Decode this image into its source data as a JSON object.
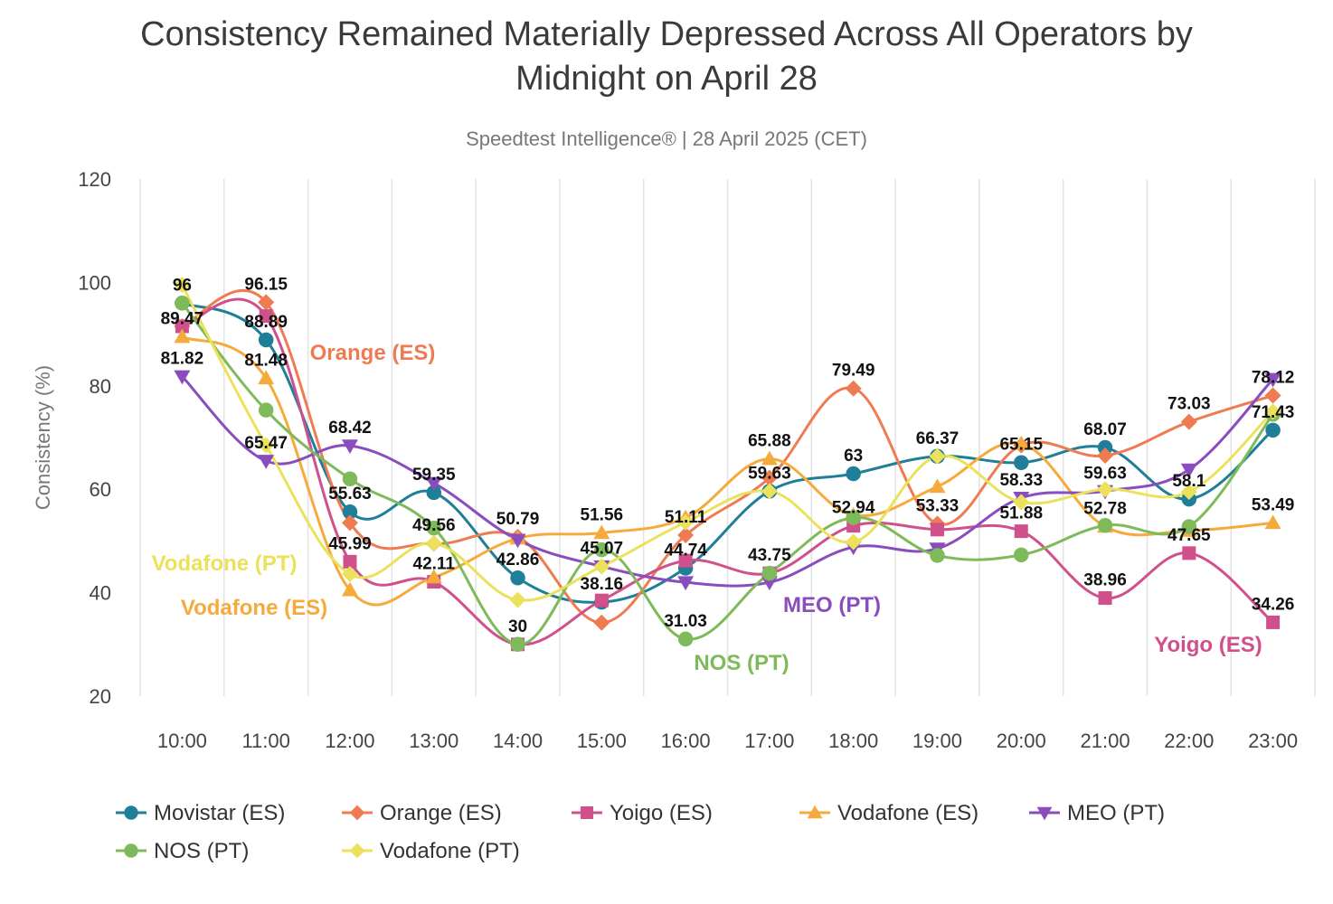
{
  "chart_data": {
    "type": "line",
    "title_line1": "Consistency Remained Materially Depressed Across All Operators by",
    "title_line2": "Midnight on April 28",
    "subtitle": "Speedtest Intelligence® | 28 April 2025 (CET)",
    "xlabel": "",
    "ylabel": "Consistency (%)",
    "ylim": [
      20,
      120
    ],
    "yticks": [
      "20",
      "40",
      "60",
      "80",
      "100",
      "120"
    ],
    "grid": "vertical",
    "legend_position": "bottom",
    "categories": [
      "10:00",
      "11:00",
      "12:00",
      "13:00",
      "14:00",
      "15:00",
      "16:00",
      "17:00",
      "18:00",
      "19:00",
      "20:00",
      "21:00",
      "22:00",
      "23:00"
    ],
    "series": [
      {
        "name": "Movistar (ES)",
        "color": "#1f7f98",
        "marker": "circle",
        "values": [
          96,
          88.89,
          55.63,
          59.35,
          42.86,
          38.16,
          44.74,
          59.63,
          63,
          66.37,
          65.15,
          68.07,
          58.1,
          71.43
        ]
      },
      {
        "name": "Orange (ES)",
        "color": "#ee7b52",
        "marker": "diamond",
        "values": [
          91.5,
          96.15,
          53.5,
          49.5,
          50.79,
          34.2,
          51.11,
          62.2,
          79.49,
          53.33,
          68.5,
          66.5,
          73.03,
          78.12
        ]
      },
      {
        "name": "Yoigo (ES)",
        "color": "#d0508b",
        "marker": "square",
        "values": [
          91.5,
          93.5,
          45.99,
          42.11,
          30,
          38.5,
          46.2,
          43.75,
          52.94,
          52.2,
          51.88,
          38.96,
          47.65,
          34.26
        ]
      },
      {
        "name": "Vodafone (ES)",
        "color": "#f7aa3c",
        "marker": "triangle-up",
        "values": [
          89.47,
          81.48,
          40.5,
          43,
          50.5,
          51.56,
          54.5,
          65.88,
          55,
          60.5,
          68.8,
          52.78,
          52,
          53.49
        ]
      },
      {
        "name": "MEO (PT)",
        "color": "#8a4dbd",
        "marker": "triangle-down",
        "values": [
          81.82,
          65.47,
          68.42,
          61.2,
          50.2,
          45.07,
          42,
          42,
          48.8,
          48.5,
          58.33,
          59.63,
          63.8,
          81.3
        ]
      },
      {
        "name": "NOS (PT)",
        "color": "#7fba5a",
        "marker": "circle",
        "values": [
          96,
          75.3,
          62,
          52.5,
          30,
          48.3,
          31.03,
          43.75,
          54.5,
          47.2,
          47.3,
          53,
          52.78,
          74.5
        ]
      },
      {
        "name": "Vodafone (PT)",
        "color": "#ece15a",
        "marker": "diamond",
        "values": [
          99.5,
          68.5,
          43.6,
          49.56,
          38.6,
          45.07,
          53.6,
          59.63,
          49.8,
          66.37,
          57.5,
          60,
          59.5,
          75
        ]
      }
    ],
    "data_labels": [
      {
        "text": "96",
        "x": "10:00",
        "y": 96
      },
      {
        "text": "89.47",
        "x": "10:00",
        "y": 89.47
      },
      {
        "text": "81.82",
        "x": "10:00",
        "y": 81.82
      },
      {
        "text": "96.15",
        "x": "11:00",
        "y": 96.15
      },
      {
        "text": "88.89",
        "x": "11:00",
        "y": 88.89
      },
      {
        "text": "81.48",
        "x": "11:00",
        "y": 81.48
      },
      {
        "text": "65.47",
        "x": "11:00",
        "y": 65.47
      },
      {
        "text": "68.42",
        "x": "12:00",
        "y": 68.42
      },
      {
        "text": "55.63",
        "x": "12:00",
        "y": 55.63
      },
      {
        "text": "45.99",
        "x": "12:00",
        "y": 45.99
      },
      {
        "text": "59.35",
        "x": "13:00",
        "y": 59.35
      },
      {
        "text": "49.56",
        "x": "13:00",
        "y": 49.56
      },
      {
        "text": "42.11",
        "x": "13:00",
        "y": 42.11
      },
      {
        "text": "50.79",
        "x": "14:00",
        "y": 50.79
      },
      {
        "text": "42.86",
        "x": "14:00",
        "y": 42.86
      },
      {
        "text": "30",
        "x": "14:00",
        "y": 30
      },
      {
        "text": "51.56",
        "x": "15:00",
        "y": 51.56
      },
      {
        "text": "45.07",
        "x": "15:00",
        "y": 45.07
      },
      {
        "text": "38.16",
        "x": "15:00",
        "y": 38.16
      },
      {
        "text": "51.11",
        "x": "16:00",
        "y": 51.11
      },
      {
        "text": "44.74",
        "x": "16:00",
        "y": 44.74
      },
      {
        "text": "31.03",
        "x": "16:00",
        "y": 31.03
      },
      {
        "text": "65.88",
        "x": "17:00",
        "y": 65.88
      },
      {
        "text": "59.63",
        "x": "17:00",
        "y": 59.63
      },
      {
        "text": "43.75",
        "x": "17:00",
        "y": 43.75
      },
      {
        "text": "79.49",
        "x": "18:00",
        "y": 79.49
      },
      {
        "text": "63",
        "x": "18:00",
        "y": 63
      },
      {
        "text": "52.94",
        "x": "18:00",
        "y": 52.94
      },
      {
        "text": "66.37",
        "x": "19:00",
        "y": 66.37
      },
      {
        "text": "53.33",
        "x": "19:00",
        "y": 53.33
      },
      {
        "text": "65.15",
        "x": "20:00",
        "y": 65.15
      },
      {
        "text": "58.33",
        "x": "20:00",
        "y": 58.33
      },
      {
        "text": "51.88",
        "x": "20:00",
        "y": 51.88
      },
      {
        "text": "68.07",
        "x": "21:00",
        "y": 68.07
      },
      {
        "text": "59.63",
        "x": "21:00",
        "y": 59.63
      },
      {
        "text": "52.78",
        "x": "21:00",
        "y": 52.78
      },
      {
        "text": "38.96",
        "x": "21:00",
        "y": 38.96
      },
      {
        "text": "73.03",
        "x": "22:00",
        "y": 73.03
      },
      {
        "text": "58.1",
        "x": "22:00",
        "y": 58.1
      },
      {
        "text": "47.65",
        "x": "22:00",
        "y": 47.65
      },
      {
        "text": "78.12",
        "x": "23:00",
        "y": 78.12
      },
      {
        "text": "71.43",
        "x": "23:00",
        "y": 71.43
      },
      {
        "text": "53.49",
        "x": "23:00",
        "y": 53.49
      },
      {
        "text": "34.26",
        "x": "23:00",
        "y": 34.26
      }
    ],
    "series_annotations": [
      {
        "text": "Orange (ES)",
        "color": "#ee7b52"
      },
      {
        "text": "Vodafone (PT)",
        "color": "#ece15a"
      },
      {
        "text": "Vodafone (ES)",
        "color": "#f7aa3c"
      },
      {
        "text": "NOS (PT)",
        "color": "#7fba5a"
      },
      {
        "text": "MEO (PT)",
        "color": "#8a4dbd"
      },
      {
        "text": "Yoigo (ES)",
        "color": "#d0508b"
      }
    ],
    "legend_order": [
      "Movistar (ES)",
      "Orange (ES)",
      "Yoigo (ES)",
      "Vodafone (ES)",
      "MEO (PT)",
      "NOS (PT)",
      "Vodafone (PT)"
    ]
  }
}
